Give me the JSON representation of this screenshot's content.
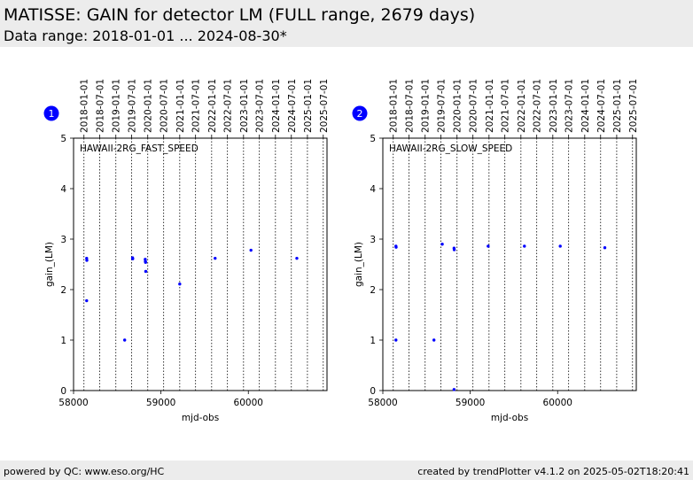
{
  "header": {
    "title": "MATISSE: GAIN for detector LM (FULL range, 2679 days)",
    "subtitle": "Data range: 2018-01-01 ... 2024-08-30*"
  },
  "footer": {
    "left": "powered by QC: www.eso.org/HC",
    "right": "created by trendPlotter v4.1.2 on 2025-05-02T18:20:41"
  },
  "colors": {
    "points": "#0000ff",
    "badge": "#0000ff",
    "header_bg": "#ececec"
  },
  "chart_data": [
    {
      "type": "scatter",
      "badge": "1",
      "annotation": "HAWAII-2RG_FAST_SPEED",
      "xlabel": "mjd-obs",
      "ylabel": "gain_(LM)",
      "xlim": [
        58000,
        60900
      ],
      "ylim": [
        0,
        5
      ],
      "xticks": [
        58000,
        59000,
        60000
      ],
      "yticks": [
        0,
        1,
        2,
        3,
        4,
        5
      ],
      "date_ticks": [
        "2018-01-01",
        "2018-07-01",
        "2019-01-01",
        "2019-07-01",
        "2020-01-01",
        "2020-07-01",
        "2021-01-01",
        "2021-07-01",
        "2022-01-01",
        "2022-07-01",
        "2023-01-01",
        "2023-07-01",
        "2024-01-01",
        "2024-07-01",
        "2025-01-01",
        "2025-07-01"
      ],
      "date_ticks_mjd": [
        58119,
        58300,
        58484,
        58665,
        58849,
        59031,
        59215,
        59396,
        59580,
        59761,
        59945,
        60126,
        60310,
        60492,
        60676,
        60857
      ],
      "points": [
        {
          "x": 58150,
          "y": 2.62
        },
        {
          "x": 58152,
          "y": 2.58
        },
        {
          "x": 58150,
          "y": 1.78
        },
        {
          "x": 58585,
          "y": 1.0
        },
        {
          "x": 58675,
          "y": 2.63
        },
        {
          "x": 58677,
          "y": 2.61
        },
        {
          "x": 58820,
          "y": 2.6
        },
        {
          "x": 58822,
          "y": 2.56
        },
        {
          "x": 58824,
          "y": 2.54
        },
        {
          "x": 58826,
          "y": 2.36
        },
        {
          "x": 59215,
          "y": 2.11
        },
        {
          "x": 59620,
          "y": 2.62
        },
        {
          "x": 60030,
          "y": 2.78
        },
        {
          "x": 60555,
          "y": 2.62
        }
      ]
    },
    {
      "type": "scatter",
      "badge": "2",
      "annotation": "HAWAII-2RG_SLOW_SPEED",
      "xlabel": "mjd-obs",
      "ylabel": "gain_(LM)",
      "xlim": [
        58000,
        60900
      ],
      "ylim": [
        0,
        5
      ],
      "xticks": [
        58000,
        59000,
        60000
      ],
      "yticks": [
        0,
        1,
        2,
        3,
        4,
        5
      ],
      "date_ticks": [
        "2018-01-01",
        "2018-07-01",
        "2019-01-01",
        "2019-07-01",
        "2020-01-01",
        "2020-07-01",
        "2021-01-01",
        "2021-07-01",
        "2022-01-01",
        "2022-07-01",
        "2023-01-01",
        "2023-07-01",
        "2024-01-01",
        "2024-07-01",
        "2025-01-01",
        "2025-07-01"
      ],
      "date_ticks_mjd": [
        58119,
        58300,
        58484,
        58665,
        58849,
        59031,
        59215,
        59396,
        59580,
        59761,
        59945,
        60126,
        60310,
        60492,
        60676,
        60857
      ],
      "points": [
        {
          "x": 58150,
          "y": 2.86
        },
        {
          "x": 58152,
          "y": 2.84
        },
        {
          "x": 58150,
          "y": 1.0
        },
        {
          "x": 58585,
          "y": 1.0
        },
        {
          "x": 58680,
          "y": 2.9
        },
        {
          "x": 58815,
          "y": 2.82
        },
        {
          "x": 58817,
          "y": 2.79
        },
        {
          "x": 58815,
          "y": 0.02
        },
        {
          "x": 59205,
          "y": 2.86
        },
        {
          "x": 59620,
          "y": 2.86
        },
        {
          "x": 60030,
          "y": 2.86
        },
        {
          "x": 60540,
          "y": 2.83
        }
      ]
    }
  ]
}
